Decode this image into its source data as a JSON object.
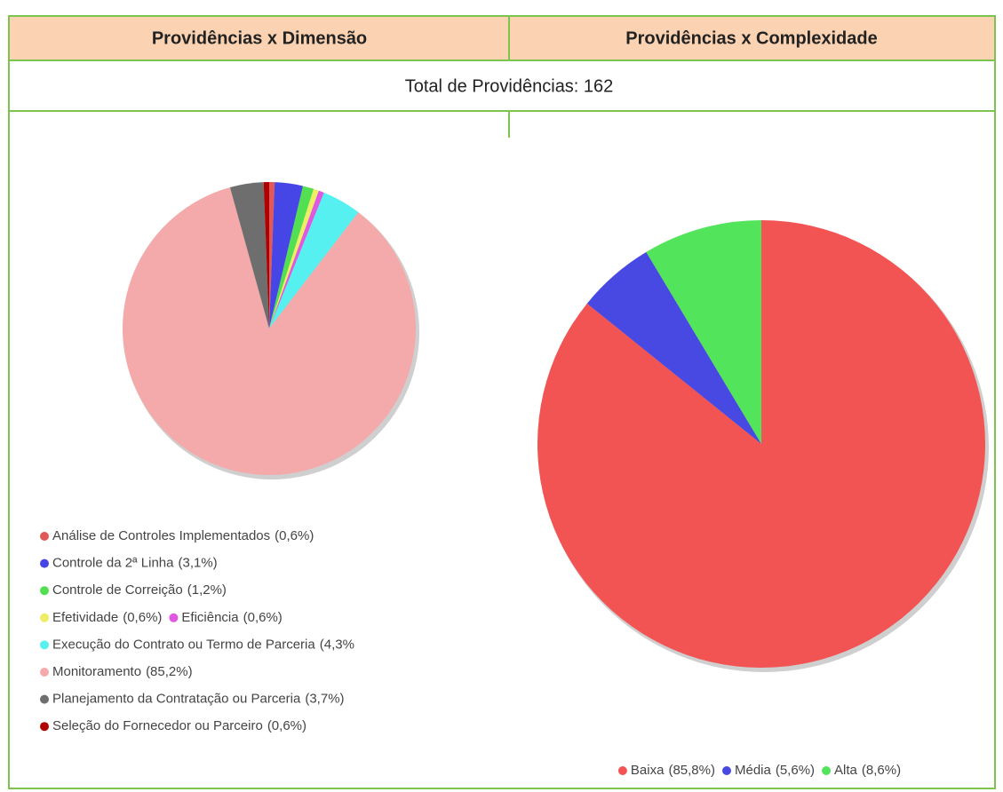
{
  "header": {
    "left": "Providências x Dimensão",
    "right": "Providências x Complexidade"
  },
  "total": "Total de Providências: 162",
  "chart_data": [
    {
      "type": "pie",
      "categories": [
        "Análise de Controles Implementados",
        "Controle da 2ª Linha",
        "Controle de Correição",
        "Efetividade",
        "Eficiência",
        "Execução do Contrato ou Termo de Parceria",
        "Monitoramento",
        "Planejamento da Contratação ou Parceria",
        "Seleção do Fornecedor ou Parceiro"
      ],
      "values": [
        0.6,
        3.1,
        1.2,
        0.6,
        0.6,
        4.3,
        85.2,
        3.7,
        0.6
      ],
      "value_labels": [
        "(0,6%)",
        "(3,1%)",
        "(1,2%)",
        "(0,6%)",
        "(0,6%)",
        "(4,3%",
        "(85,2%)",
        "(3,7%)",
        "(0,6%)"
      ],
      "colors": [
        "#e05858",
        "#4646e6",
        "#52e052",
        "#eeee66",
        "#e058e0",
        "#56f0f0",
        "#f4aaaa",
        "#6e6e6e",
        "#b00000"
      ]
    },
    {
      "type": "pie",
      "categories": [
        "Baixa",
        "Média",
        "Alta"
      ],
      "values": [
        85.8,
        5.6,
        8.6
      ],
      "value_labels": [
        "(85,8%)",
        "(5,6%)",
        "(8,6%)"
      ],
      "colors": [
        "#f25454",
        "#4848e2",
        "#52e45a"
      ]
    }
  ]
}
